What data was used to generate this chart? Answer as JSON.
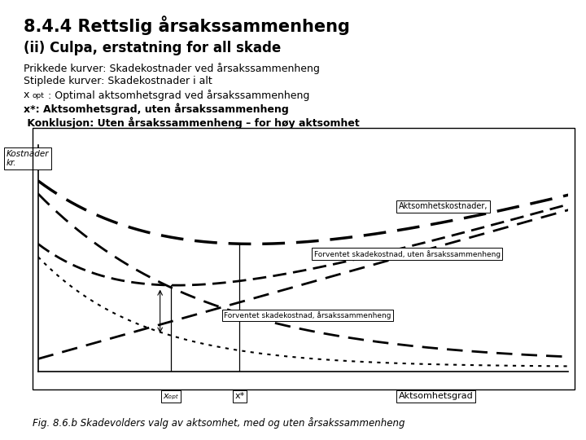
{
  "title1": "8.4.4 Rettslig årsakssammenheng",
  "title2": "(ii) Culpa, erstatning for all skade",
  "line1": "Prikkede kurver: Skadekostnader ved årsakssammenheng",
  "line2": "Stiplede kurver: Skadekostnader i alt",
  "line3_pre": "x",
  "line3_sub": "opt",
  "line3_post": ": Optimal aktsomhetsgrad ved årsakssammenheng",
  "line4": "x*: Aktsomhetsgrad, uten årsakssammenheng",
  "line5": " Konklusjon: Uten årsakssammenheng – for høy aktsomhet",
  "ylabel": "Kostnader\nkr.",
  "xlabel_label": "Aktsomhetsgrad",
  "xopt_label": "xₒₚₜ",
  "xstar_label": "x*",
  "label_aktsomhet": "Aktsomhetskostnader,",
  "label_forventet_uten": "Forventet skadekostnad, uten årsakssammenheng",
  "label_forventet_med": "Forventet skadekostnad, årsakssammenheng",
  "fig_caption": "Fig. 8.6.b Skadevolders valg av aktsomhet, med og uten årsakssammenheng",
  "background_color": "#ffffff",
  "text_color": "#000000"
}
